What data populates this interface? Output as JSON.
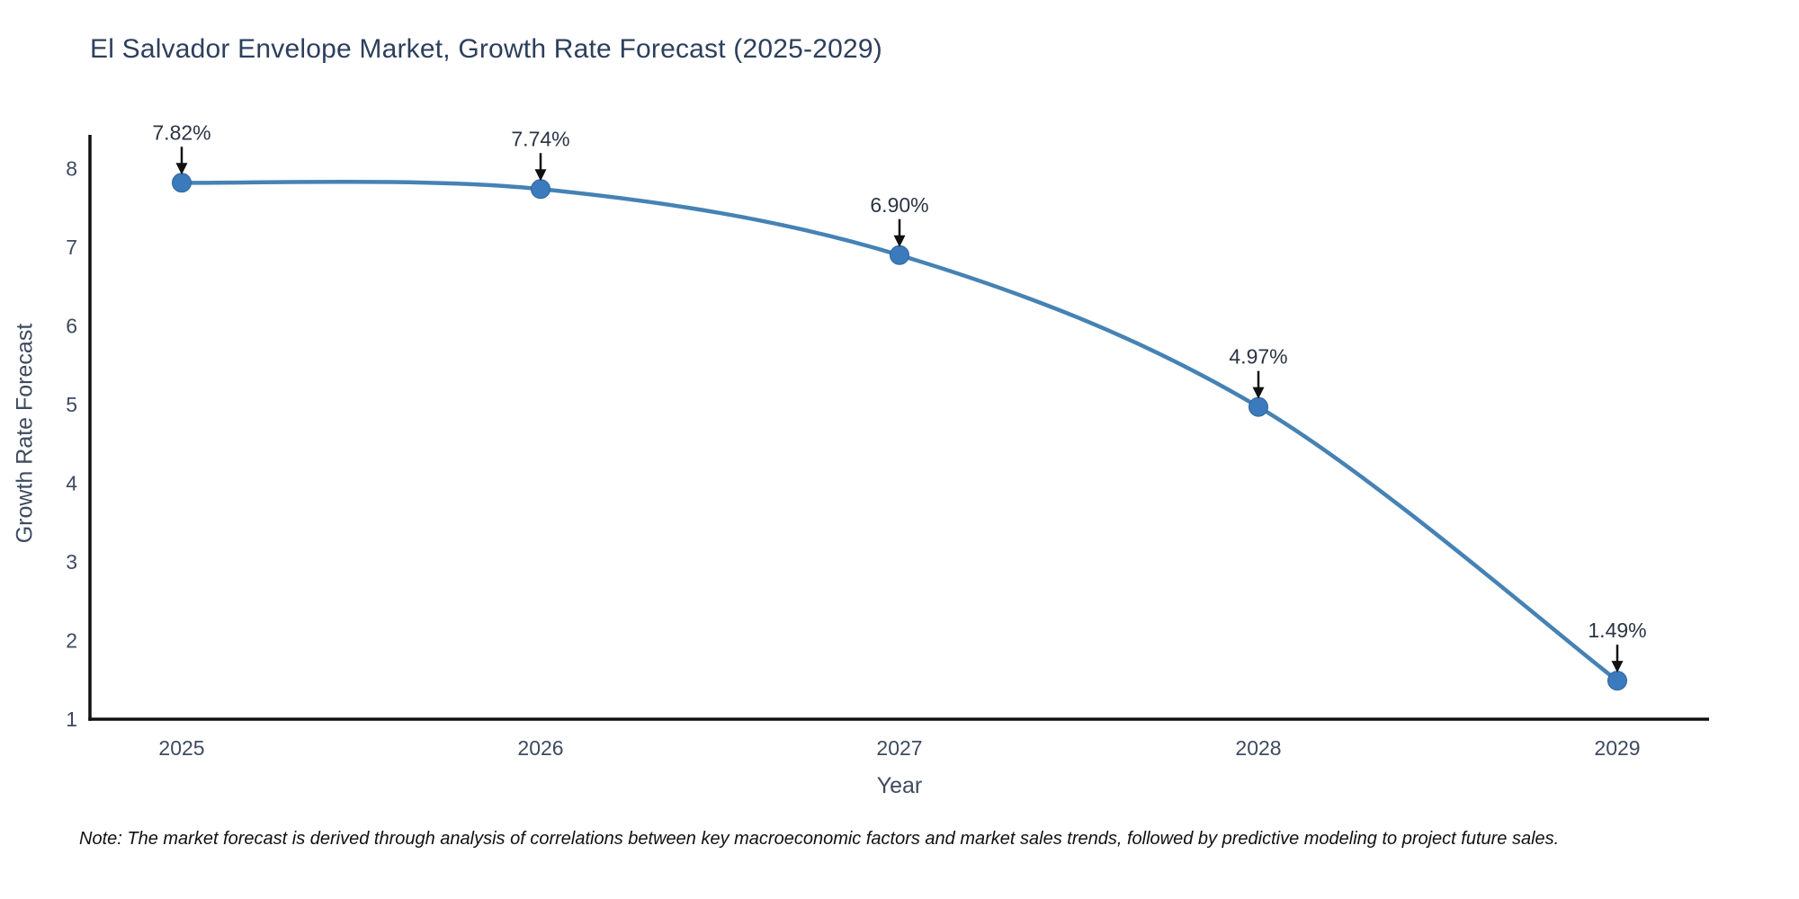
{
  "title": "El Salvador Envelope Market, Growth Rate Forecast (2025-2029)",
  "note": "Note: The market forecast is derived through analysis of correlations between key macroeconomic factors and market sales trends, followed by predictive modeling to project future sales.",
  "chart_data": {
    "type": "line",
    "title": "El Salvador Envelope Market, Growth Rate Forecast (2025-2029)",
    "x": [
      2025,
      2026,
      2027,
      2028,
      2029
    ],
    "values": [
      7.82,
      7.74,
      6.9,
      4.97,
      1.49
    ],
    "point_labels": [
      "7.82%",
      "7.74%",
      "6.90%",
      "4.97%",
      "1.49%"
    ],
    "xlabel": "Year",
    "ylabel": "Growth Rate Forecast",
    "yticks": [
      1,
      2,
      3,
      4,
      5,
      6,
      7,
      8
    ],
    "ylim": [
      1,
      8
    ],
    "grid": false,
    "legend": "none",
    "line_color": "#4682b4",
    "marker_color": "#3a7abd",
    "marker_edge_color": "#2f6598",
    "axis_color": "#111111",
    "tick_label_color": "#3e4a5f",
    "annotation_color": "#2b3443",
    "arrow_color": "#111111"
  }
}
